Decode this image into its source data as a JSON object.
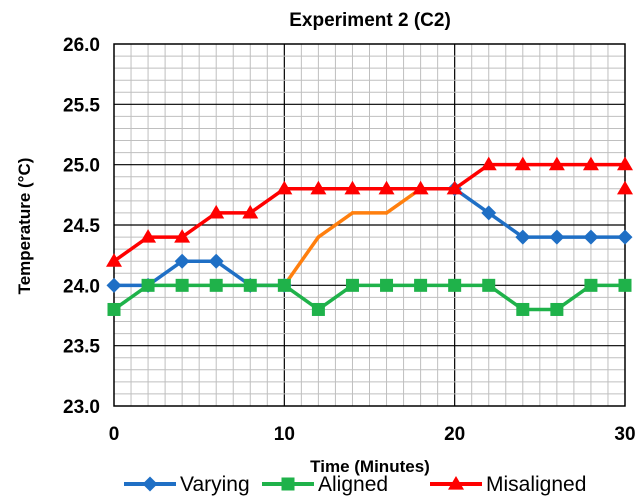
{
  "chart_data": {
    "type": "line",
    "title": "Experiment 2 (C2)",
    "xlabel": "Time (Minutes)",
    "ylabel": "Temperature (°C)",
    "xlim": [
      0,
      30
    ],
    "ylim": [
      23.0,
      26.0
    ],
    "x_ticks": [
      0,
      10,
      20,
      30
    ],
    "y_ticks": [
      "23.0",
      "23.5",
      "24.0",
      "24.5",
      "25.0",
      "25.5",
      "26.0"
    ],
    "minor_x_step": 1,
    "minor_y_step": 0.1,
    "grid": true,
    "legend_position": "bottom",
    "series": [
      {
        "name": "Varying",
        "color": "#1f6fc5",
        "marker": "diamond",
        "points": [
          [
            0,
            24.0
          ],
          [
            2,
            24.0
          ],
          [
            4,
            24.2
          ],
          [
            6,
            24.2
          ],
          [
            8,
            24.0
          ],
          [
            10,
            24.0
          ],
          [
            12,
            24.4
          ],
          [
            14,
            24.6
          ],
          [
            16,
            24.6
          ],
          [
            18,
            24.8
          ],
          [
            20,
            24.8
          ],
          [
            22,
            24.6
          ],
          [
            24,
            24.4
          ],
          [
            26,
            24.4
          ],
          [
            28,
            24.4
          ],
          [
            30,
            24.4
          ]
        ],
        "segment_colors": [
          "#1f6fc5",
          "#1f6fc5",
          "#1f6fc5",
          "#1f6fc5",
          "#1f6fc5",
          "#ff7f0e",
          "#ff7f0e",
          "#ff7f0e",
          "#ff7f0e",
          "#ff7f0e",
          "#1f6fc5",
          "#1f6fc5",
          "#1f6fc5",
          "#1f6fc5",
          "#1f6fc5"
        ],
        "marker_range": [
          [
            0,
            10
          ],
          [
            20,
            30
          ]
        ]
      },
      {
        "name": "Aligned",
        "color": "#1fb24a",
        "marker": "square",
        "points": [
          [
            0,
            23.8
          ],
          [
            2,
            24.0
          ],
          [
            4,
            24.0
          ],
          [
            6,
            24.0
          ],
          [
            8,
            24.0
          ],
          [
            10,
            24.0
          ],
          [
            12,
            23.8
          ],
          [
            14,
            24.0
          ],
          [
            16,
            24.0
          ],
          [
            18,
            24.0
          ],
          [
            20,
            24.0
          ],
          [
            22,
            24.0
          ],
          [
            24,
            23.8
          ],
          [
            26,
            23.8
          ],
          [
            28,
            24.0
          ],
          [
            30,
            24.0
          ]
        ]
      },
      {
        "name": "Misaligned",
        "color": "#ff0000",
        "marker": "triangle",
        "points": [
          [
            0,
            24.2
          ],
          [
            2,
            24.4
          ],
          [
            4,
            24.4
          ],
          [
            6,
            24.6
          ],
          [
            8,
            24.6
          ],
          [
            10,
            24.8
          ],
          [
            12,
            24.8
          ],
          [
            14,
            24.8
          ],
          [
            16,
            24.8
          ],
          [
            18,
            24.8
          ],
          [
            20,
            24.8
          ],
          [
            22,
            25.0
          ],
          [
            24,
            25.0
          ],
          [
            26,
            25.0
          ],
          [
            28,
            25.0
          ],
          [
            30,
            25.0
          ]
        ],
        "extra_points": [
          [
            30,
            24.8
          ]
        ]
      }
    ]
  }
}
